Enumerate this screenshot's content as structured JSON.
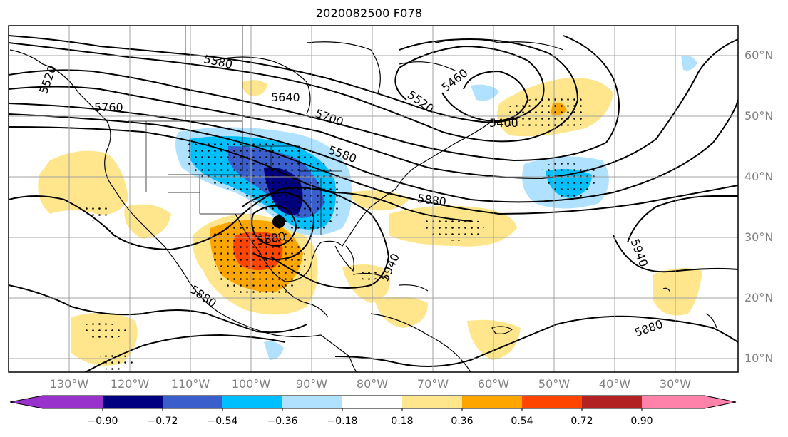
{
  "title": "2020082500 F078",
  "lat_labels": [
    "60°N",
    "50°N",
    "40°N",
    "30°N",
    "20°N",
    "10°N"
  ],
  "lon_labels": [
    "130°W",
    "120°W",
    "110°W",
    "100°W",
    "90°W",
    "80°W",
    "70°W",
    "60°W",
    "50°W",
    "40°W",
    "30°W"
  ],
  "contour_labels": [
    "5520",
    "5580",
    "5640",
    "5760",
    "5700",
    "5460",
    "5520",
    "5400",
    "5580",
    "5880",
    "5880",
    "5940",
    "5940",
    "5880",
    "5880"
  ],
  "colorbar": {
    "ticks": [
      "−0.90",
      "−0.72",
      "−0.54",
      "−0.36",
      "−0.18",
      "0.18",
      "0.36",
      "0.54",
      "0.72",
      "0.90"
    ],
    "colors": [
      "#9932cc",
      "#000080",
      "#3a5fcd",
      "#00bfff",
      "#b0e2ff",
      "#ffffff",
      "#ffe68c",
      "#ffa500",
      "#ff4500",
      "#b22222",
      "#ff82ab"
    ]
  }
}
